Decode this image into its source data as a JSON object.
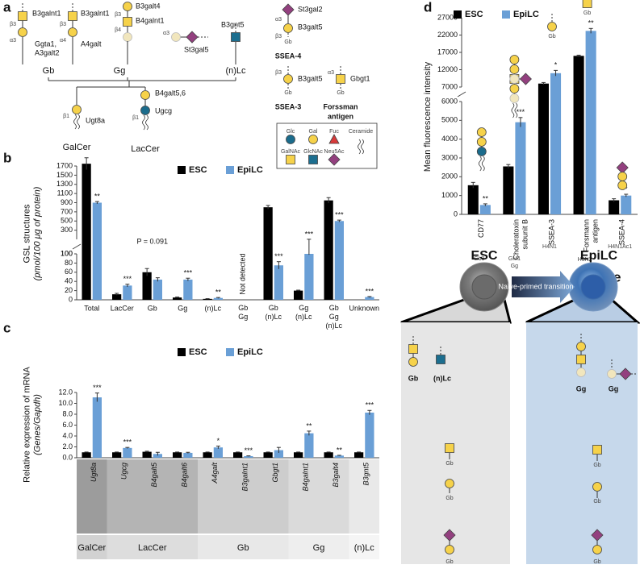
{
  "panel_labels": [
    "a",
    "b",
    "c",
    "d",
    "e"
  ],
  "panel_a": {
    "labels": [
      "B3galnt1",
      "Ggta1,",
      "A3galt2",
      "B3galnt1",
      "A4galt",
      "B3galt4",
      "B4galnt1",
      "St3gal5",
      "B3gnt5",
      "Gb",
      "Gg",
      "(n)Lc",
      "Ugt8a",
      "GalCer",
      "B4galt5,6",
      "Ugcg",
      "LacCer",
      "St3gal2",
      "B3galt5",
      "Gb",
      "SSEA-4",
      "B3galt5",
      "Gb",
      "SSEA-3",
      "Gbgt1",
      "Gb",
      "Forssman",
      "antigen"
    ],
    "linkages": [
      "β3",
      "α3",
      "β3",
      "α4",
      "β3",
      "β4",
      "α3",
      "β1",
      "β1",
      "α3",
      "β3",
      "β3",
      "α3"
    ],
    "legend": [
      "Glc",
      "Gal",
      "Fuc",
      "GalNAc",
      "GlcNAc",
      "Neu5Ac",
      "Ceramide"
    ]
  },
  "chart_data": [
    {
      "type": "bar",
      "ylabel": [
        "GSL structures",
        "(pmol/100 μg of protein)"
      ],
      "categories": [
        "Total",
        "LacCer",
        "Gb",
        "Gg",
        "(n)Lc",
        "Gb\nGg",
        "Gb\n(n)Lc",
        "Gg\n(n)Lc",
        "Gb\nGg\n(n)Lc",
        "Unknown"
      ],
      "segments": [
        {
          "ylim": [
            0,
            100
          ],
          "yticks": [
            0,
            20,
            40,
            60,
            80,
            100
          ]
        },
        {
          "ylim": [
            100,
            1700
          ],
          "yticks": [
            100,
            300,
            500,
            700,
            900,
            1100,
            1300,
            1500,
            1700
          ]
        }
      ],
      "series": [
        {
          "name": "ESC",
          "color": "#000000",
          "values": [
            1750,
            12,
            60,
            5,
            2,
            null,
            800,
            20,
            950,
            0
          ],
          "errors": [
            130,
            2,
            8,
            1,
            0.5,
            null,
            40,
            1,
            60,
            null
          ],
          "stars": [
            null,
            null,
            null,
            null,
            null,
            null,
            null,
            null,
            null,
            null
          ]
        },
        {
          "name": "EpiLC",
          "color": "#6a9fd6",
          "values": [
            900,
            31,
            44,
            44,
            4,
            null,
            75,
            100,
            500,
            6
          ],
          "errors": [
            25,
            3,
            4,
            3,
            1,
            null,
            8,
            2,
            20,
            1
          ],
          "stars": [
            "**",
            "***",
            null,
            "***",
            "**",
            null,
            "***",
            "***",
            "***",
            "***"
          ]
        }
      ],
      "annotations": [
        "P = 0.091",
        "Not detected"
      ]
    },
    {
      "type": "bar",
      "ylabel": [
        "Relative expression of mRNA",
        "(Genes/Gapdh)"
      ],
      "categories": [
        "Ugt8a",
        "Ugcg",
        "B4galt5",
        "B4galt6",
        "A4galt",
        "B3galnt1",
        "Gbgt1",
        "B4galnt1",
        "B3galt4",
        "B3gnt5"
      ],
      "ylim": [
        0,
        12
      ],
      "yticks": [
        {
          "value": 0,
          "label": "0.0"
        },
        {
          "value": 2,
          "label": "2.0"
        },
        {
          "value": 4,
          "label": "4.0"
        },
        {
          "value": 6,
          "label": "6.0"
        },
        {
          "value": 8,
          "label": "8.0"
        },
        {
          "value": 10,
          "label": "10.0"
        },
        {
          "value": 12,
          "label": "12.0"
        }
      ],
      "groups": [
        {
          "label": "GalCer",
          "span": [
            0,
            0
          ]
        },
        {
          "label": "LacCer",
          "span": [
            1,
            3
          ]
        },
        {
          "label": "Gb",
          "span": [
            4,
            6
          ]
        },
        {
          "label": "Gg",
          "span": [
            7,
            8
          ]
        },
        {
          "label": "(n)Lc",
          "span": [
            9,
            9
          ]
        }
      ],
      "series": [
        {
          "name": "ESC",
          "color": "#000000",
          "values": [
            1,
            1,
            1.1,
            1,
            1,
            1,
            1,
            1,
            1,
            1
          ],
          "errors": [
            0.05,
            0.05,
            0.1,
            0.05,
            0.05,
            0.05,
            0.05,
            0.05,
            0.05,
            0.05
          ],
          "stars": [
            null,
            null,
            null,
            null,
            null,
            null,
            null,
            null,
            null,
            null
          ]
        },
        {
          "name": "EpiLC",
          "color": "#6a9fd6",
          "values": [
            11.1,
            1.8,
            0.7,
            0.9,
            1.9,
            0.3,
            1.4,
            4.5,
            0.4,
            8.3
          ],
          "errors": [
            0.8,
            0.1,
            0.3,
            0.1,
            0.25,
            0.05,
            0.5,
            0.4,
            0.05,
            0.4
          ],
          "stars": [
            "***",
            "***",
            null,
            null,
            "*",
            "***",
            null,
            "**",
            "**",
            "***"
          ]
        }
      ]
    },
    {
      "type": "bar",
      "ylabel": [
        "Mean fluorescence intensity"
      ],
      "categories": [
        "CD77",
        "Choleratoxin\nsubunit B",
        "SSEA-3",
        "Forsmann\nantigen",
        "SSEA-4"
      ],
      "sublabels": [
        "Gb3\nGb",
        "GM1\nGg",
        "H4N1",
        "H3N2",
        "H4N1Ac1"
      ],
      "icon_labels": [
        "Gb",
        "Gb"
      ],
      "segments": [
        {
          "ylim": [
            0,
            6000
          ],
          "yticks": [
            0,
            1000,
            2000,
            3000,
            4000,
            5000,
            6000
          ]
        },
        {
          "ylim": [
            7000,
            27000
          ],
          "yticks": [
            7000,
            12000,
            17000,
            22000,
            27000
          ]
        }
      ],
      "series": [
        {
          "name": "ESC",
          "color": "#000000",
          "values": [
            1550,
            2550,
            8000,
            16000,
            750
          ],
          "errors": [
            150,
            100,
            300,
            200,
            80
          ],
          "stars": [
            null,
            null,
            null,
            null,
            null
          ]
        },
        {
          "name": "EpiLC",
          "color": "#6a9fd6",
          "values": [
            500,
            4900,
            11000,
            23200,
            1000
          ],
          "errors": [
            60,
            250,
            800,
            700,
            70
          ],
          "stars": [
            "**",
            "***",
            "*",
            "**",
            "*"
          ]
        }
      ]
    }
  ],
  "panel_e": {
    "labels": [
      "ESC",
      "EpiLC",
      "Naïve-primed transition",
      "Gb",
      "(n)Lc",
      "Gb",
      "Gb",
      "Gb",
      "Gg",
      "Gg",
      "Gb",
      "Gb",
      "Gb"
    ]
  }
}
